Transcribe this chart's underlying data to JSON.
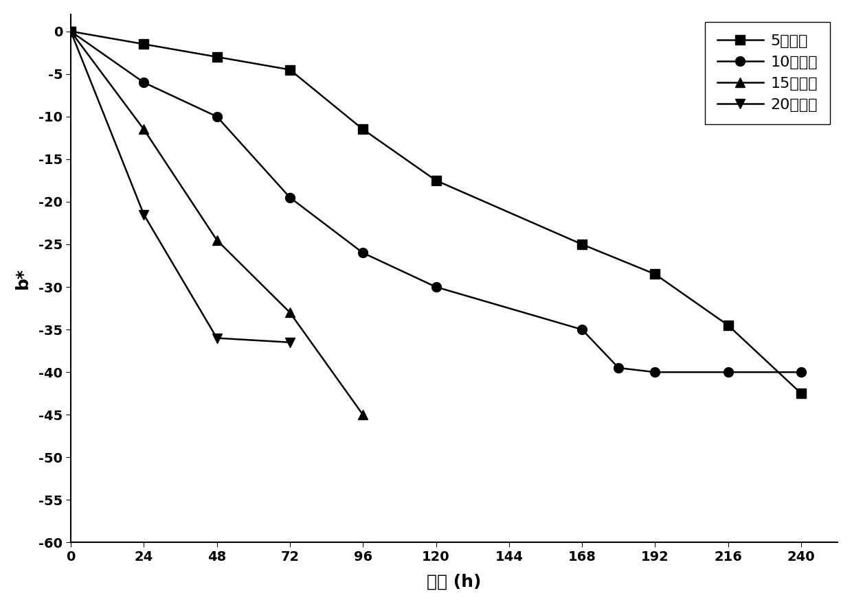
{
  "series": [
    {
      "label": "5摄氏度",
      "marker": "s",
      "x": [
        0,
        24,
        48,
        72,
        96,
        120,
        168,
        192,
        216,
        240
      ],
      "y": [
        0,
        -1.5,
        -3.0,
        -4.5,
        -11.5,
        -17.5,
        -25.0,
        -28.5,
        -34.5,
        -42.5
      ]
    },
    {
      "label": "10摄氏度",
      "marker": "o",
      "x": [
        0,
        24,
        48,
        72,
        96,
        120,
        168,
        180,
        192,
        216,
        240
      ],
      "y": [
        0,
        -6.0,
        -10.0,
        -19.5,
        -26.0,
        -30.0,
        -35.0,
        -39.5,
        -40.0,
        -40.0,
        -40.0
      ]
    },
    {
      "label": "15摄氏度",
      "marker": "^",
      "x": [
        0,
        24,
        48,
        72,
        96
      ],
      "y": [
        0,
        -11.5,
        -24.5,
        -33.0,
        -45.0
      ]
    },
    {
      "label": "20摄氏度",
      "marker": "v",
      "x": [
        0,
        24,
        48,
        72
      ],
      "y": [
        0,
        -21.5,
        -36.0,
        -36.5
      ]
    }
  ],
  "xlabel": "时间 (h)",
  "ylabel": "b*",
  "xlim": [
    0,
    252
  ],
  "ylim": [
    -60,
    2
  ],
  "xticks": [
    0,
    24,
    48,
    72,
    96,
    120,
    144,
    168,
    192,
    216,
    240
  ],
  "yticks": [
    0,
    -5,
    -10,
    -15,
    -20,
    -25,
    -30,
    -35,
    -40,
    -45,
    -50,
    -55,
    -60
  ],
  "line_color": "#000000",
  "marker_size": 10,
  "line_width": 1.8,
  "legend_fontsize": 16,
  "axis_label_fontsize": 18,
  "tick_fontsize": 14
}
